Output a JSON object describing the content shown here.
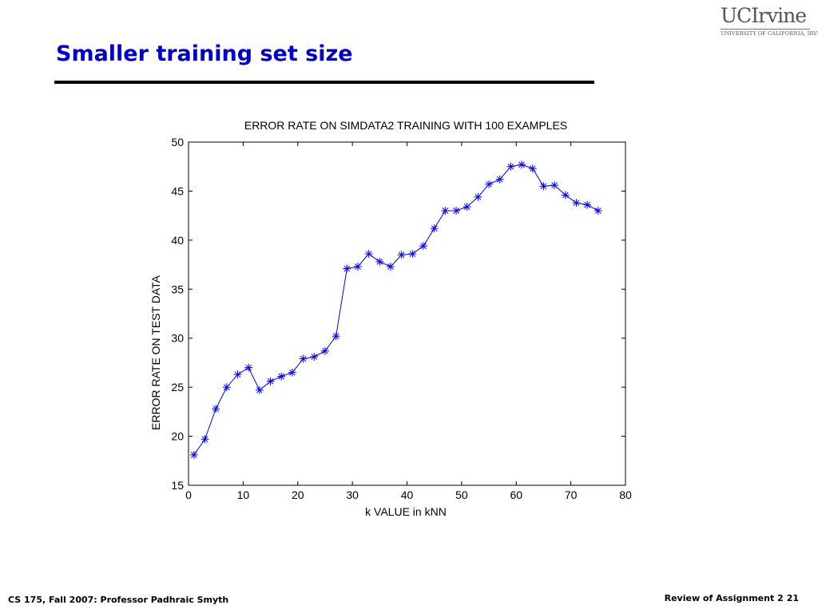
{
  "slide": {
    "title": "Smaller training set size",
    "logo_main": "UCIrvine",
    "logo_sub": "UNIVERSITY OF CALIFORNIA, IRVINE",
    "footer_left": "CS 175, Fall 2007: Professor Padhraic Smyth",
    "footer_right": "Review of Assignment 2",
    "page_number": "21"
  },
  "chart_data": {
    "type": "line",
    "title": "ERROR RATE ON SIMDATA2 TRAINING WITH 100 EXAMPLES",
    "xlabel": "k VALUE in kNN",
    "ylabel": "ERROR RATE ON TEST DATA",
    "xlim": [
      0,
      80
    ],
    "ylim": [
      15,
      50
    ],
    "xticks": [
      0,
      10,
      20,
      30,
      40,
      50,
      60,
      70,
      80
    ],
    "yticks": [
      15,
      20,
      25,
      30,
      35,
      40,
      45,
      50
    ],
    "grid": false,
    "marker": "asterisk",
    "color": "#0000ff",
    "x": [
      1,
      3,
      5,
      7,
      9,
      11,
      13,
      15,
      17,
      19,
      21,
      23,
      25,
      27,
      29,
      31,
      33,
      35,
      37,
      39,
      41,
      43,
      45,
      47,
      49,
      51,
      53,
      55,
      57,
      59,
      61,
      63,
      65,
      67,
      69,
      71,
      73,
      75
    ],
    "y": [
      18.1,
      19.7,
      22.8,
      25.0,
      26.3,
      27.0,
      24.7,
      25.6,
      26.1,
      26.5,
      27.9,
      28.1,
      28.7,
      30.2,
      37.1,
      37.3,
      38.6,
      37.8,
      37.3,
      38.5,
      38.6,
      39.4,
      41.2,
      43.0,
      43.0,
      43.4,
      44.4,
      45.7,
      46.2,
      47.5,
      47.7,
      47.3,
      45.5,
      45.6,
      44.6,
      43.8,
      43.6,
      43.0
    ]
  }
}
